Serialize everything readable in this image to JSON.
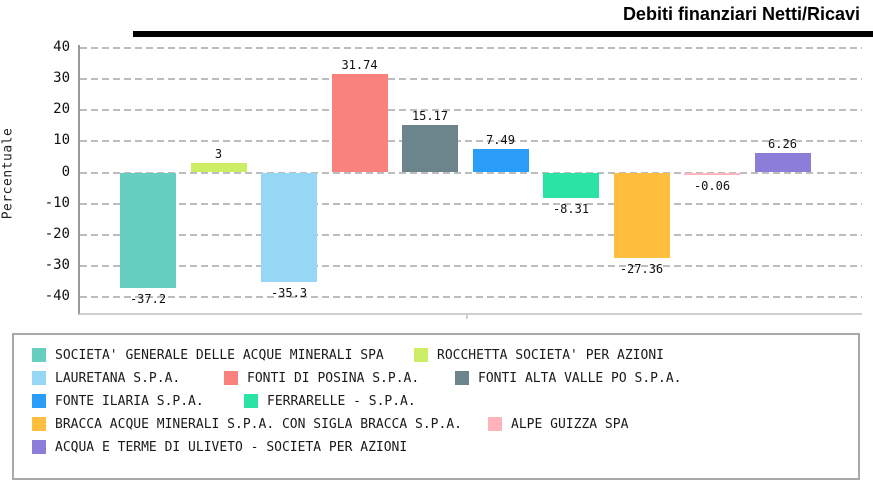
{
  "title": "Debiti finanziari Netti/Ricavi",
  "chart_data": {
    "type": "bar",
    "title": "Debiti finanziari Netti/Ricavi",
    "xlabel": "",
    "ylabel": "Percentuale",
    "ylim": [
      -40,
      40
    ],
    "yticks": [
      40,
      30,
      20,
      10,
      0,
      -10,
      -20,
      -30,
      -40
    ],
    "grid": "horizontal-dashed",
    "legend_position": "bottom-box",
    "series": [
      {
        "name": "SOCIETA' GENERALE DELLE ACQUE MINERALI SPA",
        "value": -37.2,
        "label": "-37.2",
        "color": "#66CFC2"
      },
      {
        "name": "ROCCHETTA SOCIETA' PER AZIONI",
        "value": 3,
        "label": "3",
        "color": "#CDEE64"
      },
      {
        "name": "LAURETANA S.P.A.",
        "value": -35.3,
        "label": "-35.3",
        "color": "#96D7F5"
      },
      {
        "name": "FONTI DI POSINA S.P.A.",
        "value": 31.74,
        "label": "31.74",
        "color": "#F9827E"
      },
      {
        "name": "FONTI ALTA VALLE PO S.P.A.",
        "value": 15.17,
        "label": "15.17",
        "color": "#6C858D"
      },
      {
        "name": "FONTE ILARIA S.P.A.",
        "value": 7.49,
        "label": "7.49",
        "color": "#2A9DF8"
      },
      {
        "name": "FERRARELLE - S.P.A.",
        "value": -8.31,
        "label": "-8.31",
        "color": "#2BE3A4"
      },
      {
        "name": "BRACCA ACQUE MINERALI S.P.A. CON SIGLA BRACCA S.P.A.",
        "value": -27.36,
        "label": "-27.36",
        "color": "#FFBE3E"
      },
      {
        "name": "ALPE GUIZZA SPA",
        "value": -0.06,
        "label": "-0.06",
        "color": "#FFB4BC"
      },
      {
        "name": "ACQUA E TERME DI ULIVETO - SOCIETA PER AZIONI",
        "value": 6.26,
        "label": "6.26",
        "color": "#8C7DD8"
      }
    ]
  },
  "legend": {
    "rows": [
      [
        0,
        1
      ],
      [
        2,
        3,
        4
      ],
      [
        5,
        6
      ],
      [
        7,
        8
      ],
      [
        9
      ]
    ]
  }
}
